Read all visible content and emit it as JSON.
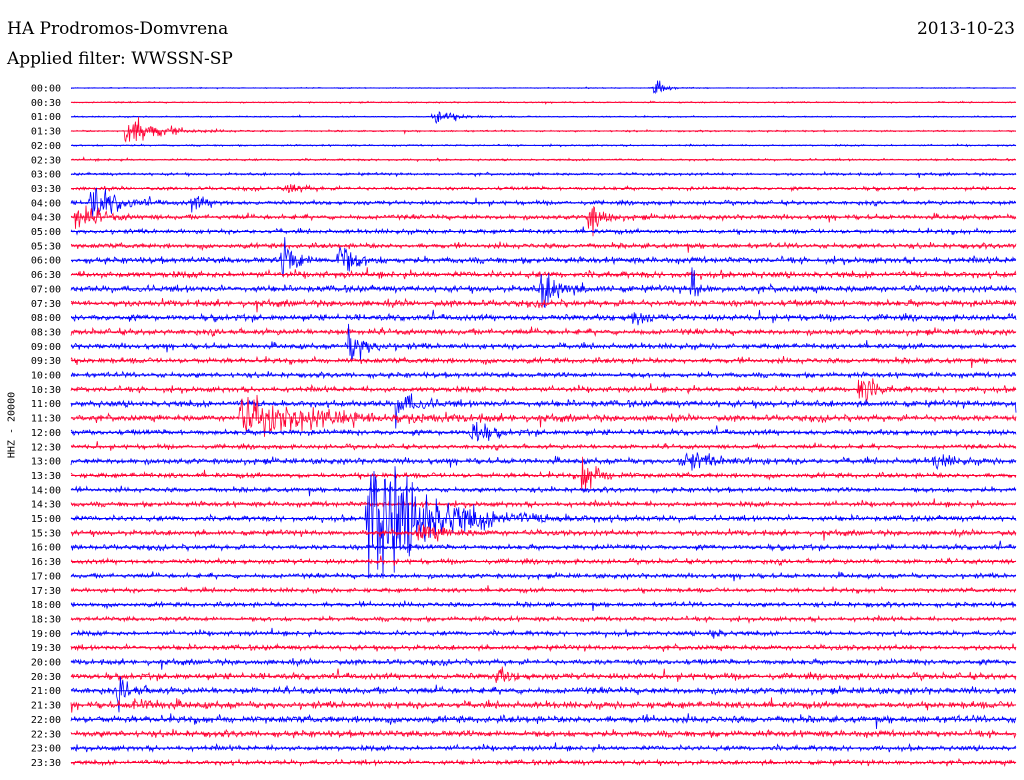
{
  "header": {
    "station": "HA Prodromos-Domvrena",
    "date": "2013-10-23",
    "filter": "Applied filter: WWSSN-SP"
  },
  "channel_label": "HHZ - 20000",
  "colors": {
    "odd_trace": "#0000ff",
    "even_trace": "#ff0033",
    "background": "#ffffff"
  },
  "chart_data": {
    "type": "line",
    "title": "HA Prodromos-Domvrena",
    "subtitle": "Applied filter: WWSSN-SP",
    "ylabel": "HHZ - 20000",
    "xlabel": "",
    "time_labels": [
      "00:00",
      "00:30",
      "01:00",
      "01:30",
      "02:00",
      "02:30",
      "03:00",
      "03:30",
      "04:00",
      "04:30",
      "05:00",
      "05:30",
      "06:00",
      "06:30",
      "07:00",
      "07:30",
      "08:00",
      "08:30",
      "09:00",
      "09:30",
      "10:00",
      "10:30",
      "11:00",
      "11:30",
      "12:00",
      "12:30",
      "13:00",
      "13:30",
      "14:00",
      "14:30",
      "15:00",
      "15:30",
      "16:00",
      "16:30",
      "17:00",
      "17:30",
      "18:00",
      "18:30",
      "19:00",
      "19:30",
      "20:00",
      "20:30",
      "21:00",
      "21:30",
      "22:00",
      "22:30",
      "23:00",
      "23:30"
    ],
    "trace_minutes": 30,
    "grid": false,
    "legend": "none",
    "colors_cycle": [
      "blue",
      "red"
    ],
    "noise_level": [
      0.3,
      0.4,
      0.4,
      0.5,
      0.5,
      0.6,
      0.8,
      1.0,
      1.2,
      1.4,
      1.3,
      1.5,
      1.8,
      1.9,
      1.9,
      1.9,
      1.8,
      1.7,
      1.6,
      1.6,
      1.5,
      1.6,
      1.9,
      1.8,
      1.6,
      1.3,
      1.7,
      1.5,
      1.4,
      1.5,
      1.6,
      1.6,
      1.5,
      1.4,
      1.4,
      1.3,
      1.4,
      1.3,
      1.4,
      1.5,
      1.6,
      1.8,
      1.9,
      2.0,
      2.1,
      1.9,
      1.5,
      1.4
    ],
    "events": [
      {
        "trace": 0,
        "minute": 18.5,
        "amplitude": 6,
        "duration": 0.6
      },
      {
        "trace": 2,
        "minute": 11.5,
        "amplitude": 5,
        "duration": 1.2
      },
      {
        "trace": 3,
        "minute": 1.7,
        "amplitude": 12,
        "duration": 1.8
      },
      {
        "trace": 7,
        "minute": 6.8,
        "amplitude": 4,
        "duration": 1.0
      },
      {
        "trace": 8,
        "minute": 0.6,
        "amplitude": 12,
        "duration": 1.5
      },
      {
        "trace": 8,
        "minute": 3.8,
        "amplitude": 5,
        "duration": 1.0
      },
      {
        "trace": 9,
        "minute": 0.1,
        "amplitude": 10,
        "duration": 1.2
      },
      {
        "trace": 9,
        "minute": 16.4,
        "amplitude": 12,
        "duration": 0.8
      },
      {
        "trace": 12,
        "minute": 6.7,
        "amplitude": 14,
        "duration": 0.8
      },
      {
        "trace": 12,
        "minute": 8.5,
        "amplitude": 14,
        "duration": 0.8
      },
      {
        "trace": 14,
        "minute": 14.9,
        "amplitude": 12,
        "duration": 1.2
      },
      {
        "trace": 14,
        "minute": 19.7,
        "amplitude": 16,
        "duration": 0.3
      },
      {
        "trace": 16,
        "minute": 17.8,
        "amplitude": 7,
        "duration": 0.6
      },
      {
        "trace": 18,
        "minute": 8.8,
        "amplitude": 12,
        "duration": 1.0
      },
      {
        "trace": 21,
        "minute": 25.0,
        "amplitude": 11,
        "duration": 0.8
      },
      {
        "trace": 22,
        "minute": 10.3,
        "amplitude": 10,
        "duration": 1.0
      },
      {
        "trace": 22,
        "minute": 30.0,
        "amplitude": 7,
        "duration": 1.2
      },
      {
        "trace": 23,
        "minute": 5.3,
        "amplitude": 10,
        "duration": 6.0
      },
      {
        "trace": 24,
        "minute": 12.7,
        "amplitude": 11,
        "duration": 0.8
      },
      {
        "trace": 26,
        "minute": 19.4,
        "amplitude": 5,
        "duration": 2.0
      },
      {
        "trace": 26,
        "minute": 27.4,
        "amplitude": 5,
        "duration": 1.0
      },
      {
        "trace": 27,
        "minute": 16.2,
        "amplitude": 11,
        "duration": 1.0
      },
      {
        "trace": 30,
        "minute": 9.4,
        "amplitude": 48,
        "duration": 3.5
      },
      {
        "trace": 31,
        "minute": 11.0,
        "amplitude": 6,
        "duration": 1.5
      },
      {
        "trace": 38,
        "minute": 20.3,
        "amplitude": 5,
        "duration": 0.5
      },
      {
        "trace": 41,
        "minute": 13.5,
        "amplitude": 5,
        "duration": 0.8
      },
      {
        "trace": 42,
        "minute": 1.5,
        "amplitude": 9,
        "duration": 0.8
      },
      {
        "trace": 43,
        "minute": 2.0,
        "amplitude": 3,
        "duration": 1.5
      }
    ]
  }
}
